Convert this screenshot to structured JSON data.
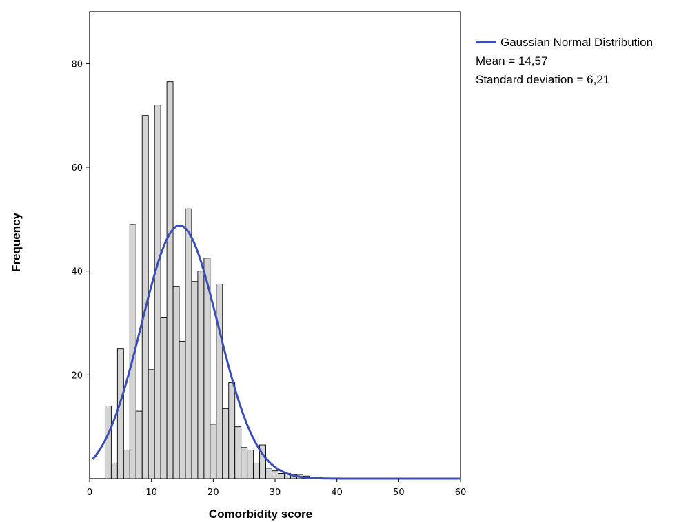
{
  "chart_data": {
    "type": "bar",
    "xlabel": "Comorbidity score",
    "ylabel": "Frequency",
    "xlim": [
      0,
      60
    ],
    "ylim": [
      0,
      90
    ],
    "x_ticks": [
      0,
      10,
      20,
      30,
      40,
      50,
      60
    ],
    "y_ticks": [
      20,
      40,
      60,
      80
    ],
    "bin_width": 1,
    "bars": [
      {
        "x": 3,
        "y": 14
      },
      {
        "x": 4,
        "y": 3
      },
      {
        "x": 5,
        "y": 25
      },
      {
        "x": 6,
        "y": 5.5
      },
      {
        "x": 7,
        "y": 49
      },
      {
        "x": 8,
        "y": 13
      },
      {
        "x": 9,
        "y": 70
      },
      {
        "x": 10,
        "y": 21
      },
      {
        "x": 11,
        "y": 72
      },
      {
        "x": 12,
        "y": 31
      },
      {
        "x": 13,
        "y": 76.5
      },
      {
        "x": 14,
        "y": 37
      },
      {
        "x": 15,
        "y": 26.5
      },
      {
        "x": 16,
        "y": 52
      },
      {
        "x": 17,
        "y": 38
      },
      {
        "x": 18,
        "y": 40
      },
      {
        "x": 19,
        "y": 42.5
      },
      {
        "x": 20,
        "y": 10.5
      },
      {
        "x": 21,
        "y": 37.5
      },
      {
        "x": 22,
        "y": 13.5
      },
      {
        "x": 23,
        "y": 18.5
      },
      {
        "x": 24,
        "y": 10
      },
      {
        "x": 25,
        "y": 6
      },
      {
        "x": 26,
        "y": 5.5
      },
      {
        "x": 27,
        "y": 3
      },
      {
        "x": 28,
        "y": 6.5
      },
      {
        "x": 29,
        "y": 2
      },
      {
        "x": 30,
        "y": 1.5
      },
      {
        "x": 31,
        "y": 1
      },
      {
        "x": 32,
        "y": 1
      },
      {
        "x": 33,
        "y": 0.8
      },
      {
        "x": 34,
        "y": 0.8
      },
      {
        "x": 35,
        "y": 0.5
      },
      {
        "x": 36,
        "y": 0.3
      },
      {
        "x": 37,
        "y": 0.2
      }
    ],
    "series": [
      {
        "name": "Gaussian Normal Distribution",
        "kind": "normal-curve",
        "mean": 14.57,
        "sd": 6.21,
        "peak": 48.8,
        "color": "#3a4fb5"
      }
    ],
    "legend": {
      "placement": "right",
      "curve_label": "Gaussian Normal Distribution",
      "mean_text": "Mean  = 14,57",
      "sd_text": "Standard deviation = 6,21"
    },
    "colors": {
      "bar_fill": "#d4d4d4",
      "bar_stroke": "#000000",
      "curve": "#3a4fb5"
    },
    "grid": false
  }
}
